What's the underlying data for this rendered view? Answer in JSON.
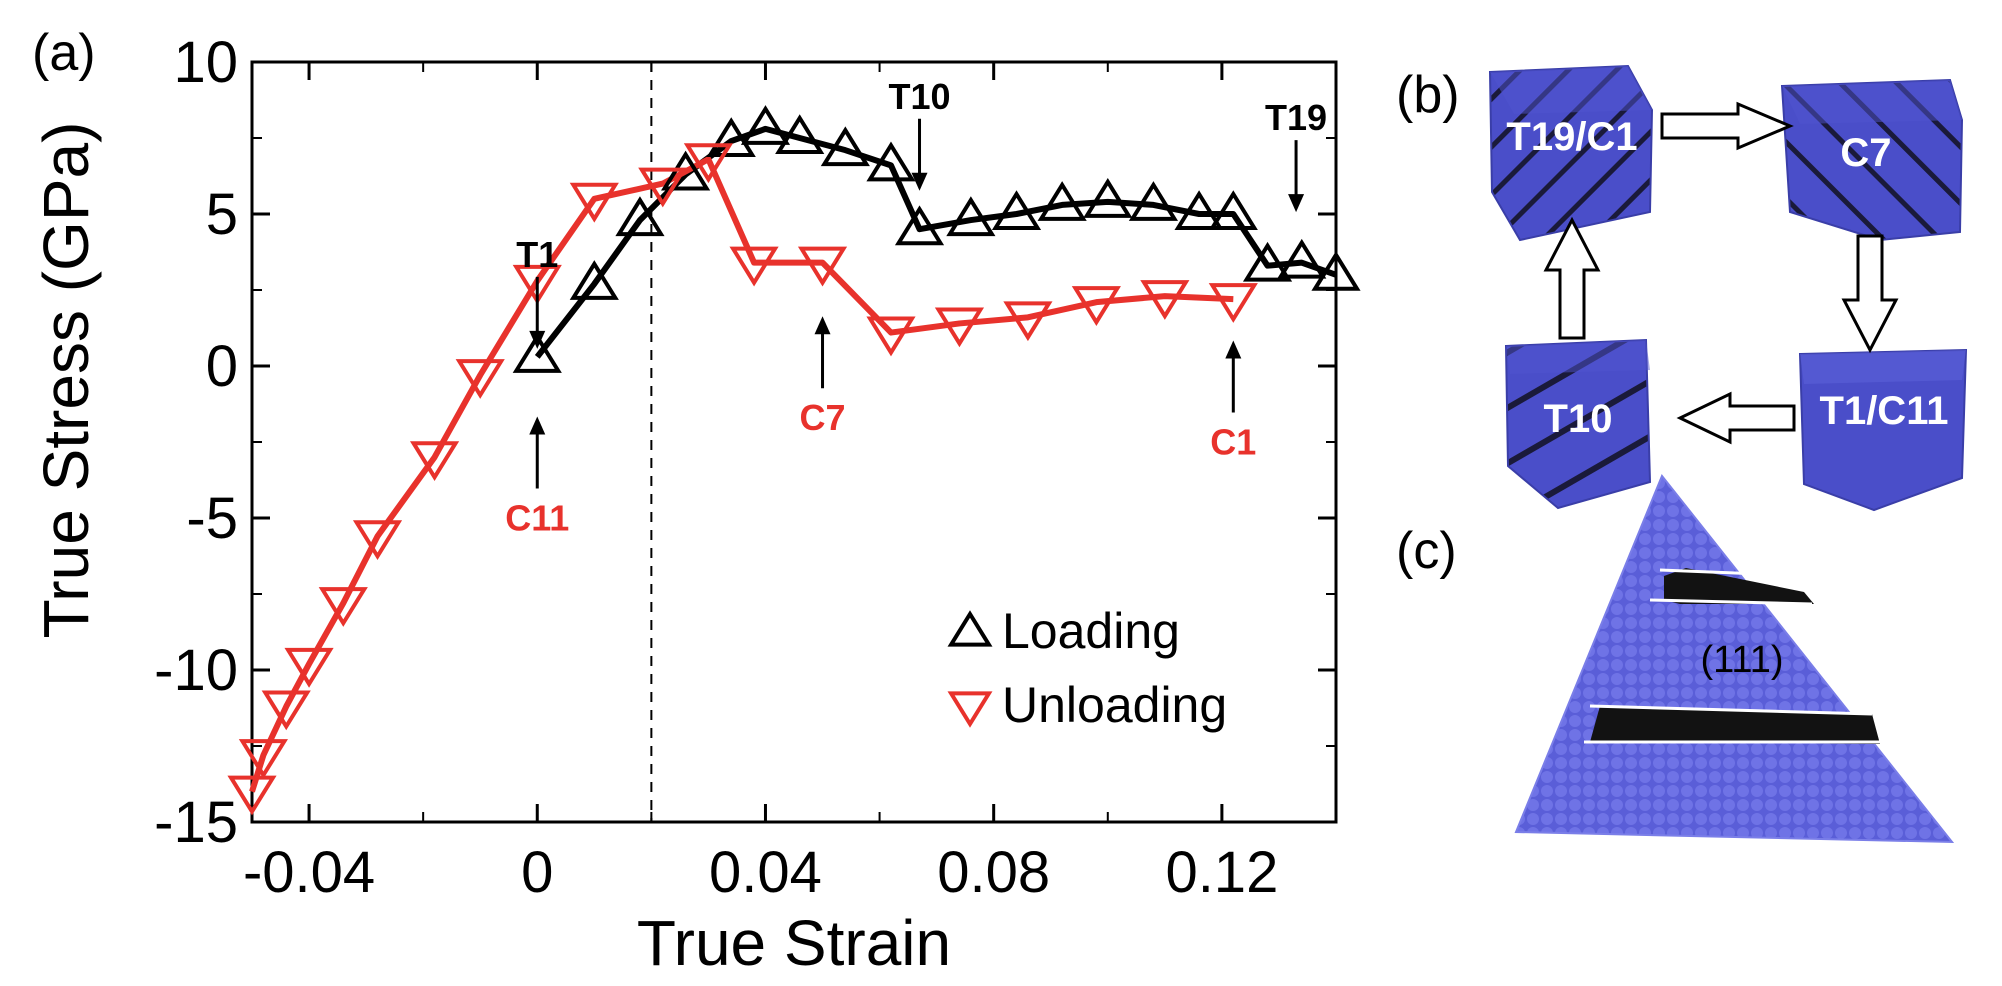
{
  "chart_data": {
    "type": "line",
    "xlabel": "True Strain",
    "ylabel": "True Stress (GPa)",
    "xlim": [
      -0.05,
      0.14
    ],
    "ylim": [
      -15,
      10
    ],
    "xticks": [
      -0.04,
      0,
      0.04,
      0.08,
      0.12
    ],
    "xtick_labels": [
      "-0.04",
      "0",
      "0.04",
      "0.08",
      "0.12"
    ],
    "yticks": [
      -15,
      -10,
      -5,
      0,
      5,
      10
    ],
    "ytick_labels": [
      "-15",
      "-10",
      "-5",
      "0",
      "5",
      "10"
    ],
    "reference_line_x": 0.02,
    "series": [
      {
        "name": "Loading",
        "marker": "triangle-up",
        "color": "#000000",
        "x": [
          0,
          0.01,
          0.018,
          0.026,
          0.034,
          0.04,
          0.046,
          0.054,
          0.062,
          0.067,
          0.076,
          0.084,
          0.092,
          0.1,
          0.108,
          0.116,
          0.122,
          0.128,
          0.134,
          0.14
        ],
        "y": [
          0.3,
          2.7,
          4.8,
          6.3,
          7.4,
          7.8,
          7.5,
          7.1,
          6.6,
          4.5,
          4.8,
          5.0,
          5.3,
          5.4,
          5.3,
          5.0,
          5.0,
          3.3,
          3.4,
          3.0
        ]
      },
      {
        "name": "Unloading",
        "marker": "triangle-down",
        "color": "#e8322c",
        "x": [
          -0.05,
          -0.048,
          -0.044,
          -0.04,
          -0.034,
          -0.028,
          -0.018,
          -0.01,
          0,
          0.01,
          0.022,
          0.03,
          0.038,
          0.05,
          0.062,
          0.074,
          0.086,
          0.098,
          0.11,
          0.122
        ],
        "y": [
          -14,
          -12.8,
          -11.2,
          -9.8,
          -7.8,
          -5.6,
          -3.0,
          -0.3,
          2.8,
          5.5,
          6.0,
          6.8,
          3.4,
          3.4,
          1.1,
          1.4,
          1.6,
          2.1,
          2.3,
          2.2
        ]
      }
    ],
    "annotations": [
      {
        "text": "T1",
        "x": 0,
        "y": 0.3,
        "side": "above",
        "color": "#000000"
      },
      {
        "text": "T10",
        "x": 0.067,
        "y": 5.5,
        "side": "above",
        "color": "#000000"
      },
      {
        "text": "T19",
        "x": 0.133,
        "y": 4.8,
        "side": "above",
        "color": "#000000"
      },
      {
        "text": "C11",
        "x": 0,
        "y": -1.4,
        "side": "below",
        "color": "#e8322c"
      },
      {
        "text": "C7",
        "x": 0.05,
        "y": 1.9,
        "side": "below",
        "color": "#e8322c"
      },
      {
        "text": "C1",
        "x": 0.122,
        "y": 1.1,
        "side": "below",
        "color": "#e8322c"
      }
    ],
    "legend": {
      "position": "bottom-right",
      "entries": [
        "Loading",
        "Unloading"
      ]
    }
  },
  "panels": {
    "a": "(a)",
    "b": "(b)",
    "c": "(c)"
  },
  "cubes": {
    "top_left": "T19/C1",
    "top_right": "C7",
    "bottom_left": "T10",
    "bottom_right": "T1/C11"
  },
  "pyramid": {
    "plane_label": "(111)"
  },
  "colors": {
    "cube_blue": "#4a4ec9",
    "atom_blue": "#6b6fe0",
    "loading": "#000000",
    "unloading": "#e8322c"
  }
}
